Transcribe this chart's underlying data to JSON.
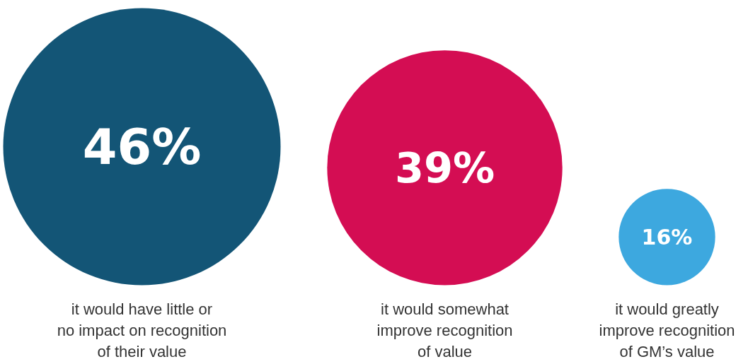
{
  "chart_data": {
    "type": "other",
    "categories": [
      "it would have little or no impact on recognition of their value",
      "it would somewhat improve recognition of value",
      "it would greatly improve recognition of GM’s value"
    ],
    "values": [
      46,
      39,
      16
    ],
    "colors": [
      "#135576",
      "#d40d53",
      "#3da8df"
    ],
    "value_labels": [
      "46%",
      "39%",
      "16%"
    ]
  }
}
